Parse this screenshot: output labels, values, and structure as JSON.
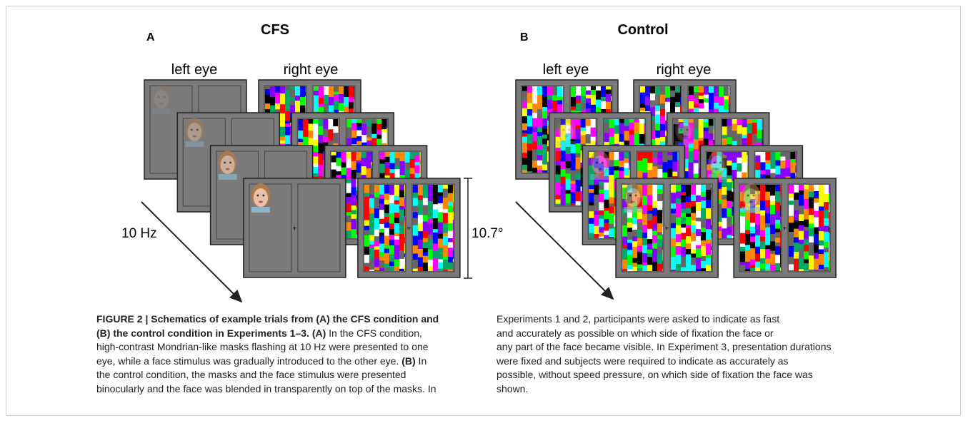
{
  "figure": {
    "panel_a": {
      "letter": "A",
      "title": "CFS",
      "left_label": "left eye",
      "right_label": "right eye",
      "rate_label": "10 Hz",
      "size_label": "10.7°"
    },
    "panel_b": {
      "letter": "B",
      "title": "Control",
      "left_label": "left eye",
      "right_label": "right eye"
    }
  },
  "caption": {
    "left": [
      [
        {
          "text": "FIGURE 2 | Schematics of example trials from (A) the CFS condition and",
          "bold": true
        }
      ],
      [
        {
          "text": "(B) the control condition in Experiments 1–3. (A)",
          "bold": true
        },
        {
          "text": " In the CFS condition,",
          "bold": false
        }
      ],
      [
        {
          "text": "high-contrast Mondrian-like masks flashing at 10 Hz were presented to one",
          "bold": false
        }
      ],
      [
        {
          "text": "eye, while a face stimulus was gradually introduced to the other eye. ",
          "bold": false
        },
        {
          "text": "(B)",
          "bold": true
        },
        {
          "text": " In",
          "bold": false
        }
      ],
      [
        {
          "text": "the control condition, the masks and the face stimulus were presented",
          "bold": false
        }
      ],
      [
        {
          "text": "binocularly and the face was blended in transparently on top of the masks. In",
          "bold": false
        }
      ]
    ],
    "right": [
      [
        {
          "text": "Experiments 1 and 2, participants were asked to indicate as fast",
          "bold": false
        }
      ],
      [
        {
          "text": "and accurately as possible on which side of fixation the face or",
          "bold": false
        }
      ],
      [
        {
          "text": "any part of the face became visible. In Experiment 3, presentation durations",
          "bold": false
        }
      ],
      [
        {
          "text": "were fixed and subjects were required to indicate as accurately as",
          "bold": false
        }
      ],
      [
        {
          "text": "possible, without speed pressure, on which side of fixation the face was",
          "bold": false
        }
      ],
      [
        {
          "text": "shown.",
          "bold": false
        }
      ]
    ]
  }
}
